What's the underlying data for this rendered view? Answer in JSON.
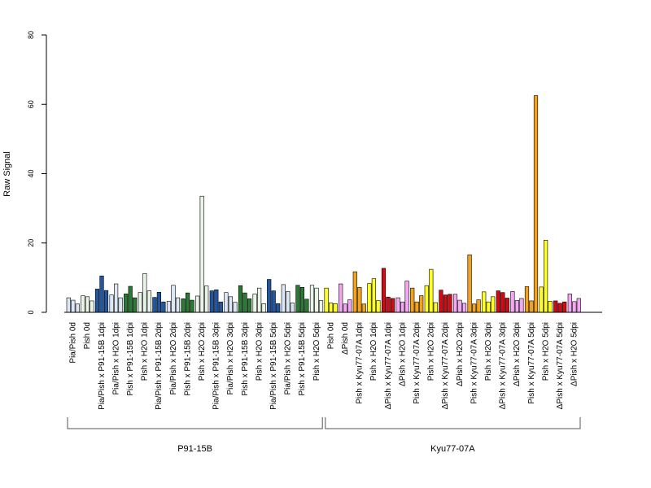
{
  "chart_data": {
    "type": "bar",
    "ylabel": "Raw Signal",
    "ylim": [
      0,
      80
    ],
    "yticks": [
      0,
      20,
      40,
      60,
      80
    ],
    "groups": [
      {
        "label": "Pia/Pish 0d",
        "color": "#dde6f4",
        "values": [
          4.2,
          3.5,
          2.4
        ]
      },
      {
        "label": "Pish 0d",
        "color": "#e9f5e6",
        "values": [
          4.8,
          4.5,
          3.3
        ]
      },
      {
        "label": "Pia/Pish x P91-15B 1dpi",
        "color": "#2257a0",
        "values": [
          6.7,
          10.5,
          6.3
        ]
      },
      {
        "label": "Pia/Pish x H2O 1dpi",
        "color": "#dde6f4",
        "values": [
          5.0,
          8.2,
          4.2
        ]
      },
      {
        "label": "Pish x P91-15B 1dpi",
        "color": "#2a7a35",
        "values": [
          5.3,
          7.5,
          4.2
        ]
      },
      {
        "label": "Pish x H2O 1dpi",
        "color": "#e9f5e6",
        "values": [
          5.7,
          11.2,
          6.2
        ]
      },
      {
        "label": "Pia/Pish x P91-15B 2dpi",
        "color": "#2257a0",
        "values": [
          4.3,
          5.8,
          3.0
        ]
      },
      {
        "label": "Pia/Pish x H2O 2dpi",
        "color": "#dde6f4",
        "values": [
          3.2,
          7.8,
          4.2
        ]
      },
      {
        "label": "Pish x P91-15B 2dpi",
        "color": "#2a7a35",
        "values": [
          3.9,
          5.6,
          3.5
        ]
      },
      {
        "label": "Pish x H2O 2dpi",
        "color": "#e9f5e6",
        "values": [
          4.7,
          33.5,
          7.6
        ]
      },
      {
        "label": "Pia/Pish x P91-15B 3dpi",
        "color": "#2257a0",
        "values": [
          6.2,
          6.5,
          3.0
        ]
      },
      {
        "label": "Pia/Pish x H2O 3dpi",
        "color": "#dde6f4",
        "values": [
          5.7,
          4.5,
          2.9
        ]
      },
      {
        "label": "Pish x P91-15B 3dpi",
        "color": "#2a7a35",
        "values": [
          7.7,
          5.6,
          3.9
        ]
      },
      {
        "label": "Pish x H2O 3dpi",
        "color": "#e9f5e6",
        "values": [
          5.3,
          7.0,
          2.5
        ]
      },
      {
        "label": "Pia/Pish x P91-15B 5dpi",
        "color": "#2257a0",
        "values": [
          9.5,
          6.2,
          2.5
        ]
      },
      {
        "label": "Pia/Pish x H2O 5dpi",
        "color": "#dde6f4",
        "values": [
          8.0,
          6.0,
          2.7
        ]
      },
      {
        "label": "Pish x P91-15B 5dpi",
        "color": "#2a7a35",
        "values": [
          7.8,
          7.2,
          3.8
        ]
      },
      {
        "label": "Pish x H2O 5dpi",
        "color": "#e9f5e6",
        "values": [
          7.8,
          7.0,
          3.4
        ]
      },
      {
        "label": "Pish 0d",
        "color": "#ffff22",
        "values": [
          7.0,
          2.7,
          2.5
        ]
      },
      {
        "label": "ΔPish 0d",
        "color": "#f4a8f4",
        "values": [
          8.2,
          2.4,
          3.6
        ]
      },
      {
        "label": "Pish x Kyu77-07A 1dpi",
        "color": "#f4a11c",
        "values": [
          11.7,
          7.2,
          2.4
        ]
      },
      {
        "label": "Pish x H2O 1dpi",
        "color": "#ffff22",
        "values": [
          8.3,
          9.7,
          3.4
        ]
      },
      {
        "label": "ΔPish x Kyu77-07A 1dpi",
        "color": "#d10a14",
        "values": [
          12.7,
          4.4,
          4.0
        ]
      },
      {
        "label": "ΔPish x H2O 1dpi",
        "color": "#f4a8f4",
        "values": [
          4.2,
          3.0,
          9.0
        ]
      },
      {
        "label": "Pish x Kyu77-07A 2dpi",
        "color": "#f4a11c",
        "values": [
          7.0,
          3.0,
          4.8
        ]
      },
      {
        "label": "Pish x H2O 2dpi",
        "color": "#ffff22",
        "values": [
          7.7,
          12.4,
          2.8
        ]
      },
      {
        "label": "ΔPish x Kyu77-07A 2dpi",
        "color": "#d10a14",
        "values": [
          6.4,
          5.0,
          5.2
        ]
      },
      {
        "label": "ΔPish x H2O 2dpi",
        "color": "#f4a8f4",
        "values": [
          5.2,
          3.5,
          2.6
        ]
      },
      {
        "label": "Pish x Kyu77-07A 3dpi",
        "color": "#f4a11c",
        "values": [
          16.6,
          2.4,
          3.6
        ]
      },
      {
        "label": "Pish x H2O 3dpi",
        "color": "#ffff22",
        "values": [
          5.9,
          3.0,
          4.5
        ]
      },
      {
        "label": "ΔPish x Kyu77-07A 3dpi",
        "color": "#d10a14",
        "values": [
          6.2,
          5.7,
          4.1
        ]
      },
      {
        "label": "ΔPish x H2O 3dpi",
        "color": "#f4a8f4",
        "values": [
          6.0,
          3.4,
          4.0
        ]
      },
      {
        "label": "Pish x Kyu77-07A 5dpi",
        "color": "#f4a11c",
        "values": [
          7.4,
          3.3,
          62.5
        ]
      },
      {
        "label": "Pish x H2O 5dpi",
        "color": "#ffff22",
        "values": [
          7.3,
          20.8,
          3.2
        ]
      },
      {
        "label": "ΔPish x Kyu77-07A 5dpi",
        "color": "#d10a14",
        "values": [
          3.3,
          2.6,
          3.0
        ]
      },
      {
        "label": "ΔPish x H2O 5dpi",
        "color": "#f4a8f4",
        "values": [
          5.3,
          3.1,
          4.0
        ]
      }
    ],
    "brackets": [
      {
        "label": "P91-15B",
        "from": 0,
        "to": 17
      },
      {
        "label": "Kyu77-07A",
        "from": 18,
        "to": 35
      }
    ]
  }
}
